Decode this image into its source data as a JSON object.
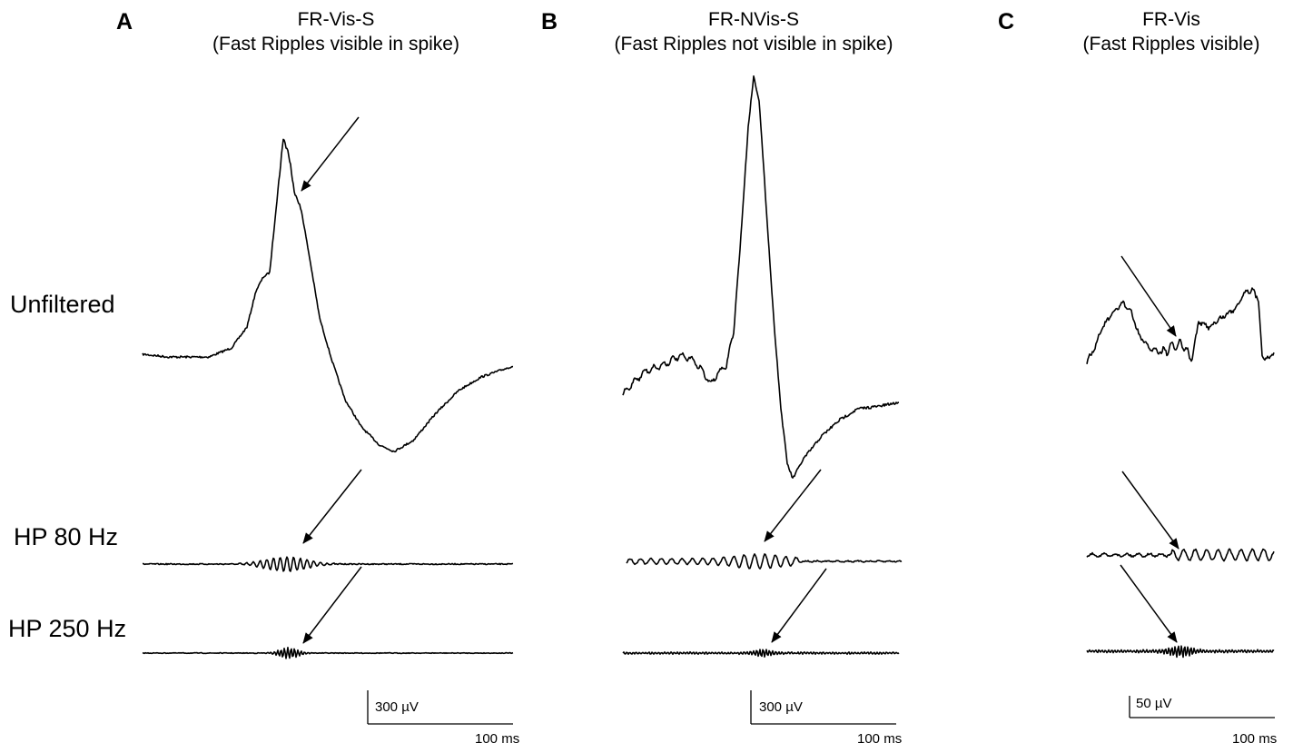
{
  "panels": [
    {
      "letter": "A",
      "title": "FR-Vis-S",
      "subtitle": "(Fast Ripples visible in spike)",
      "scale_voltage": "300 µV",
      "scale_time": "100 ms"
    },
    {
      "letter": "B",
      "title": "FR-NVis-S",
      "subtitle": "(Fast Ripples not visible in spike)",
      "scale_voltage": "300 µV",
      "scale_time": "100 ms"
    },
    {
      "letter": "C",
      "title": "FR-Vis",
      "subtitle": "(Fast Ripples visible)",
      "scale_voltage": "50 µV",
      "scale_time": "100 ms"
    }
  ],
  "rows": [
    {
      "label": "Unfiltered"
    },
    {
      "label": "HP 80 Hz"
    },
    {
      "label": "HP 250 Hz"
    }
  ]
}
